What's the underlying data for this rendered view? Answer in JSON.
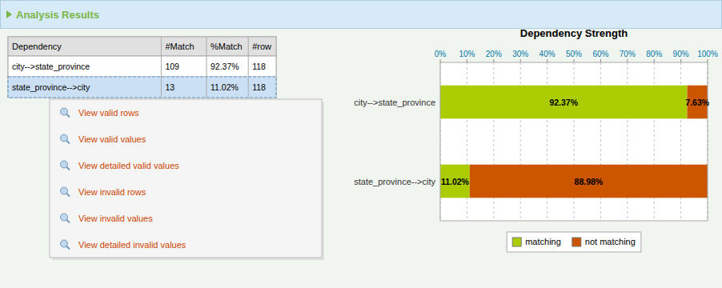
{
  "title": "Analysis Results",
  "table": {
    "headers": [
      "Dependency",
      "#Match",
      "%Match",
      "#row"
    ],
    "rows": [
      [
        "city-->state_province",
        "109",
        "92.37%",
        "118"
      ],
      [
        "state_province-->city",
        "13",
        "11.02%",
        "118"
      ]
    ]
  },
  "context_menu": [
    "View valid rows",
    "View valid values",
    "View detailed valid values",
    "View invalid rows",
    "View invalid values",
    "View detailed invalid values"
  ],
  "chart_data": {
    "type": "bar",
    "title": "Dependency Strength",
    "orientation": "horizontal",
    "stacked": true,
    "categories": [
      "city-->state_province",
      "state_province-->city"
    ],
    "series": [
      {
        "name": "matching",
        "color": "#aacc00",
        "values": [
          92.37,
          11.02
        ],
        "value_labels": [
          "92.37%",
          "11.02%"
        ]
      },
      {
        "name": "not matching",
        "color": "#cc5500",
        "values": [
          7.63,
          88.98
        ],
        "value_labels": [
          "7.63%",
          "88.98%"
        ]
      }
    ],
    "xlim": [
      0,
      100
    ],
    "xticks": [
      {
        "value": 0,
        "label": "0%"
      },
      {
        "value": 10,
        "label": "10%"
      },
      {
        "value": 20,
        "label": "20%"
      },
      {
        "value": 30,
        "label": "30%"
      },
      {
        "value": 40,
        "label": "40%"
      },
      {
        "value": 50,
        "label": "50%"
      },
      {
        "value": 60,
        "label": "60%"
      },
      {
        "value": 70,
        "label": "70%"
      },
      {
        "value": 80,
        "label": "80%"
      },
      {
        "value": 90,
        "label": "90%"
      },
      {
        "value": 100,
        "label": "100%"
      }
    ],
    "grid": true,
    "legend": "bottom",
    "data_labels": true
  }
}
